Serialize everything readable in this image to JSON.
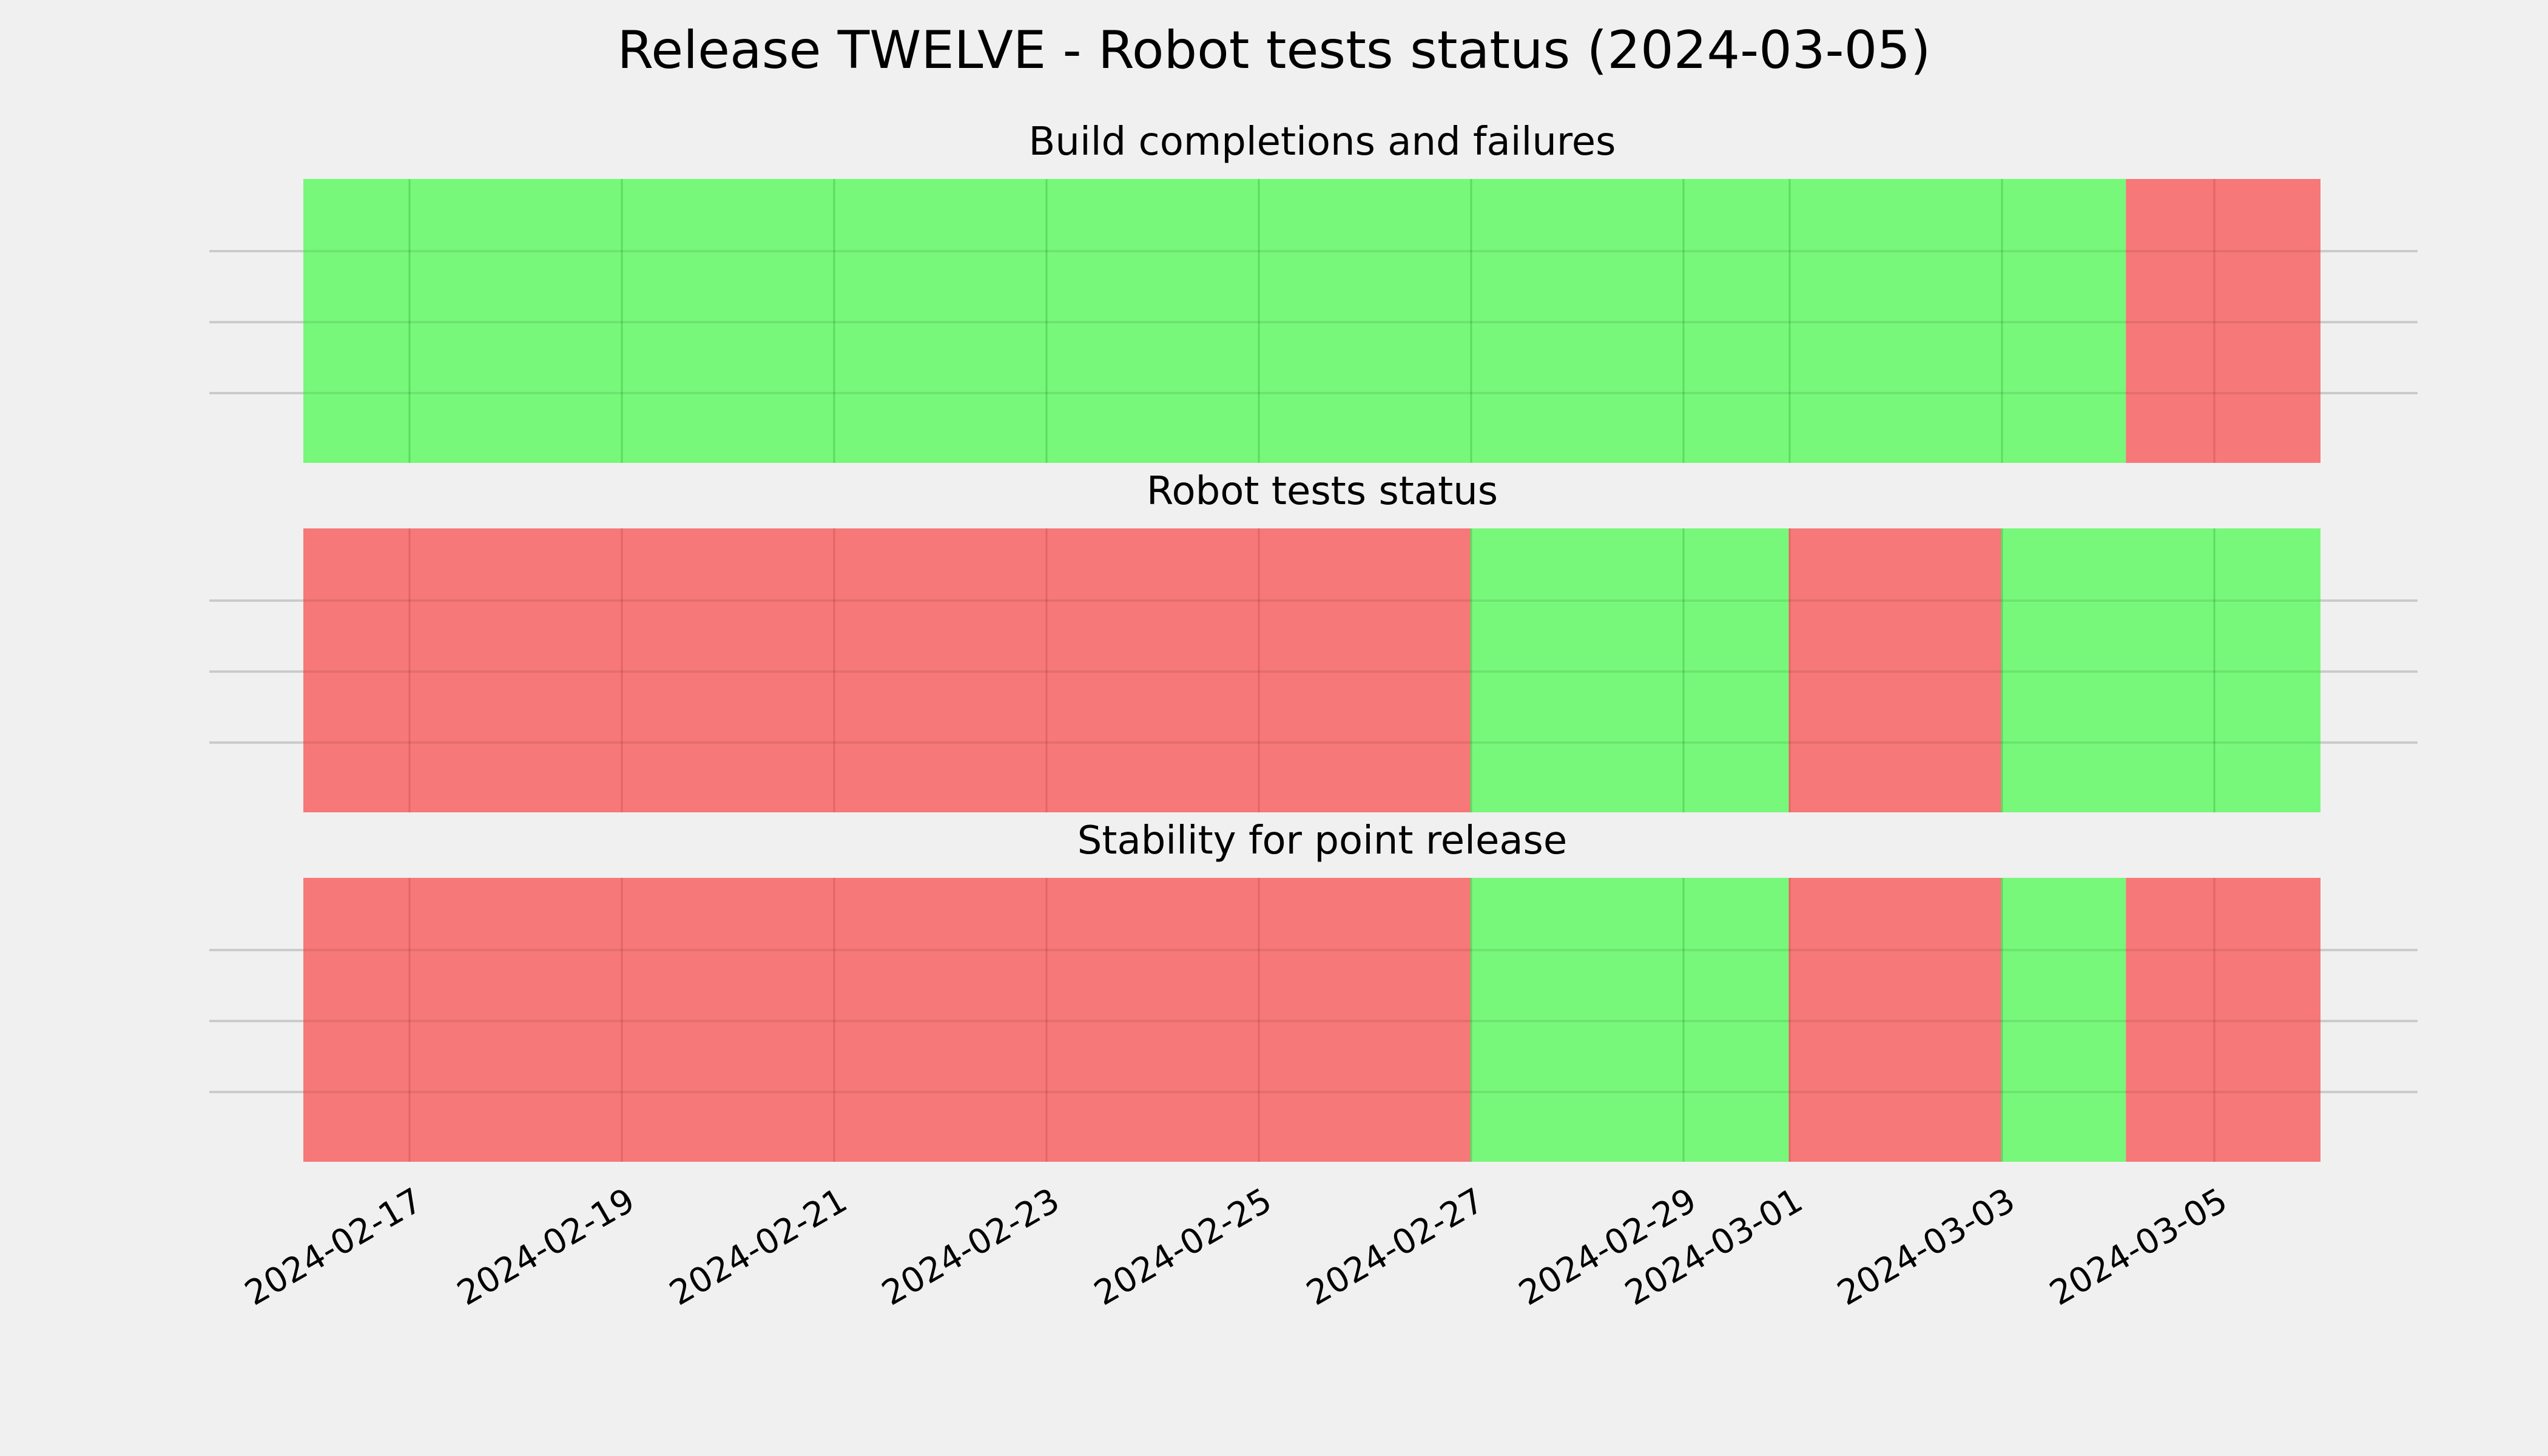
{
  "title": "Release TWELVE - Robot tests status (2024-03-05)",
  "colors": {
    "background": "#f0f0f0",
    "pass": "#77f87a",
    "fail": "#f77878",
    "grid_on_pass": "#5ddb60",
    "grid_on_fail": "#e46565",
    "hgrid": "#cbcbcb"
  },
  "chart_data": {
    "type": "timeline",
    "xlim": [
      "2024-02-16T00:00",
      "2024-03-06T00:00"
    ],
    "x_ticks": [
      "2024-02-17",
      "2024-02-19",
      "2024-02-21",
      "2024-02-23",
      "2024-02-25",
      "2024-02-27",
      "2024-02-29",
      "2024-03-01",
      "2024-03-03",
      "2024-03-05"
    ],
    "grid": true,
    "panels": [
      {
        "title": "Build completions and failures",
        "segments": [
          {
            "start": "2024-02-16T00:00",
            "end": "2024-03-04T04:00",
            "status": "pass"
          },
          {
            "start": "2024-03-04T04:00",
            "end": "2024-03-06T00:00",
            "status": "fail"
          }
        ]
      },
      {
        "title": "Robot tests status",
        "segments": [
          {
            "start": "2024-02-16T00:00",
            "end": "2024-02-27T00:00",
            "status": "fail"
          },
          {
            "start": "2024-02-27T00:00",
            "end": "2024-03-01T00:00",
            "status": "pass"
          },
          {
            "start": "2024-03-01T00:00",
            "end": "2024-03-03T00:00",
            "status": "fail"
          },
          {
            "start": "2024-03-03T00:00",
            "end": "2024-03-06T00:00",
            "status": "pass"
          }
        ]
      },
      {
        "title": "Stability for point release",
        "segments": [
          {
            "start": "2024-02-16T00:00",
            "end": "2024-02-27T00:00",
            "status": "fail"
          },
          {
            "start": "2024-02-27T00:00",
            "end": "2024-03-01T00:00",
            "status": "pass"
          },
          {
            "start": "2024-03-01T00:00",
            "end": "2024-03-03T00:00",
            "status": "fail"
          },
          {
            "start": "2024-03-03T00:00",
            "end": "2024-03-04T04:00",
            "status": "pass"
          },
          {
            "start": "2024-03-04T04:00",
            "end": "2024-03-06T00:00",
            "status": "fail"
          }
        ]
      }
    ]
  }
}
